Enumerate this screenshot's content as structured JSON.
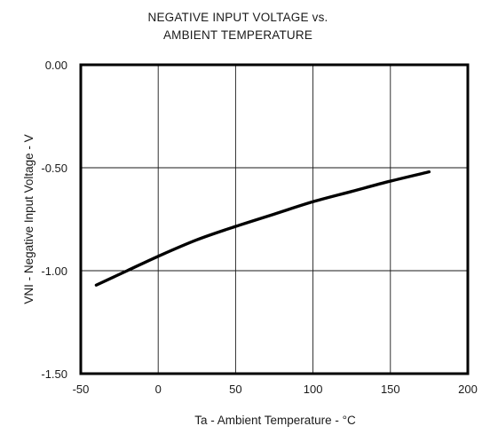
{
  "chart_data": {
    "type": "line",
    "title_lines": [
      "NEGATIVE  INPUT  VOLTAGE  vs.",
      "AMBIENT  TEMPERATURE"
    ],
    "xlabel": "Ta - Ambient Temperature  - °C",
    "ylabel": "VNI - Negative  Input Voltage - V",
    "xlim": [
      -50,
      200
    ],
    "ylim": [
      -1.5,
      0
    ],
    "x_ticks": [
      -50,
      0,
      50,
      100,
      150,
      200
    ],
    "x_tick_labels": [
      "-50",
      "0",
      "50",
      "100",
      "150",
      "200"
    ],
    "y_ticks": [
      0,
      -0.5,
      -1.0,
      -1.5
    ],
    "y_tick_labels": [
      "0.00",
      "-0.50",
      "-1.00",
      "-1.50"
    ],
    "grid": true,
    "series": [
      {
        "x": [
          -40,
          -20,
          0,
          25,
          50,
          75,
          100,
          125,
          150,
          175
        ],
        "y": [
          -1.07,
          -1.0,
          -0.93,
          -0.85,
          -0.785,
          -0.725,
          -0.665,
          -0.615,
          -0.565,
          -0.52
        ]
      }
    ]
  }
}
